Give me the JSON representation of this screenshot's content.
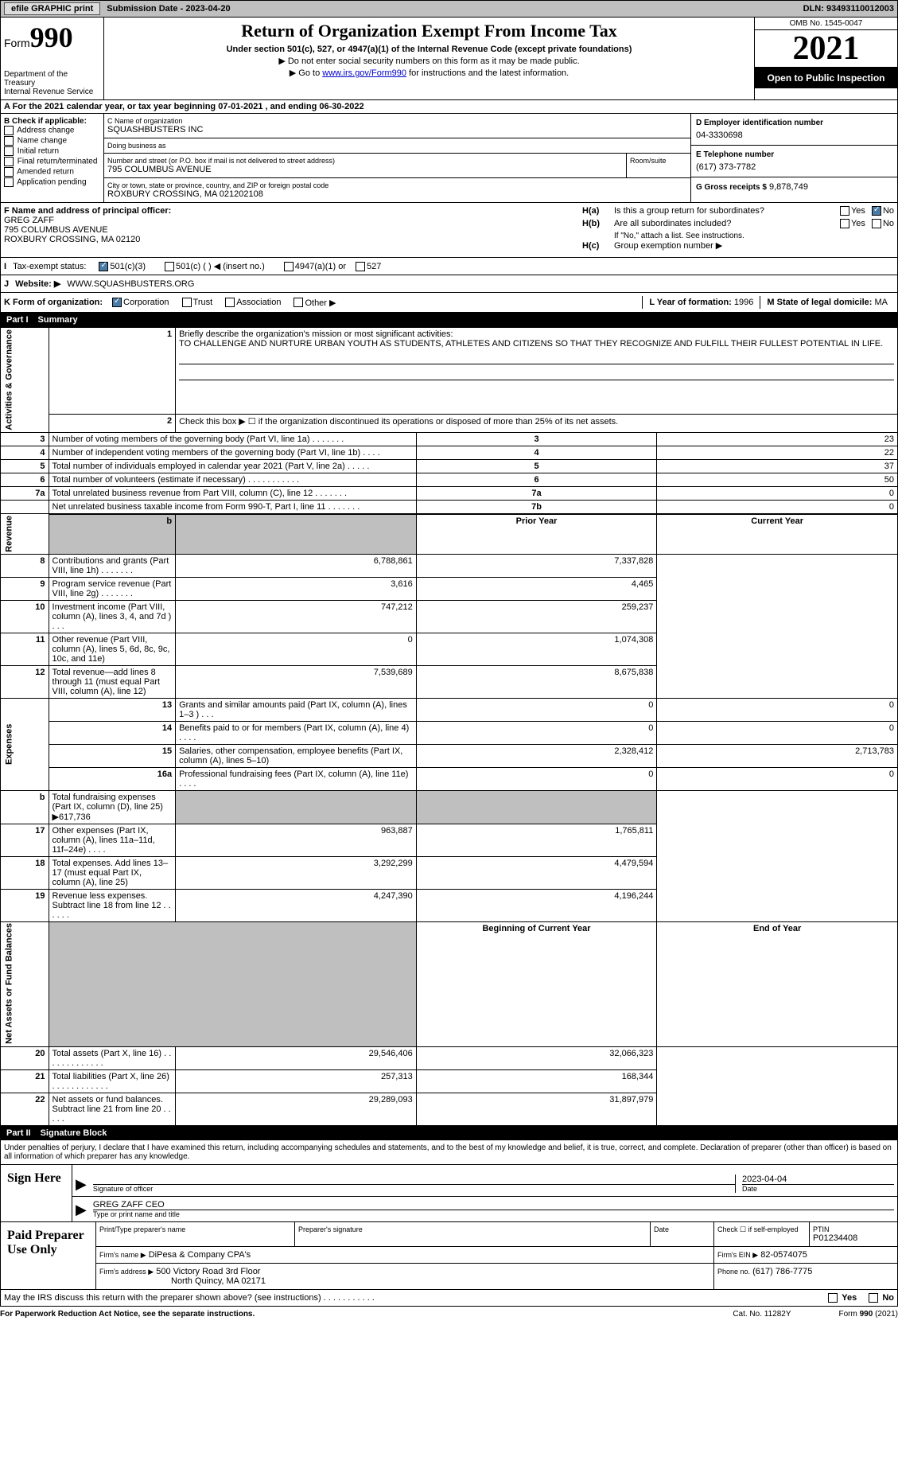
{
  "header": {
    "efile_btn": "efile GRAPHIC print",
    "submission": "Submission Date - 2023-04-20",
    "dln": "DLN: 93493110012003"
  },
  "form_box": {
    "form_word": "Form",
    "form_num": "990",
    "dept": "Department of the Treasury\nInternal Revenue Service",
    "title": "Return of Organization Exempt From Income Tax",
    "subtitle": "Under section 501(c), 527, or 4947(a)(1) of the Internal Revenue Code (except private foundations)",
    "line1": "▶ Do not enter social security numbers on this form as it may be made public.",
    "line2_pre": "▶ Go to ",
    "line2_link": "www.irs.gov/Form990",
    "line2_post": " for instructions and the latest information.",
    "omb": "OMB No. 1545-0047",
    "year": "2021",
    "inspect": "Open to Public Inspection"
  },
  "row_a": "A For the 2021 calendar year, or tax year beginning 07-01-2021   , and ending 06-30-2022",
  "col_b": {
    "header": "B Check if applicable:",
    "items": [
      "Address change",
      "Name change",
      "Initial return",
      "Final return/terminated",
      "Amended return",
      "Application pending"
    ]
  },
  "col_c": {
    "name_label": "C Name of organization",
    "name": "SQUASHBUSTERS INC",
    "dba_label": "Doing business as",
    "dba": "",
    "addr_label": "Number and street (or P.O. box if mail is not delivered to street address)",
    "addr": "795 COLUMBUS AVENUE",
    "room_label": "Room/suite",
    "city_label": "City or town, state or province, country, and ZIP or foreign postal code",
    "city": "ROXBURY CROSSING, MA  021202108"
  },
  "col_d": {
    "ein_label": "D Employer identification number",
    "ein": "04-3330698",
    "phone_label": "E Telephone number",
    "phone": "(617) 373-7782",
    "gross_label": "G Gross receipts $",
    "gross": "9,878,749"
  },
  "section_f": {
    "label": "F Name and address of principal officer:",
    "name": "GREG ZAFF",
    "addr1": "795 COLUMBUS AVENUE",
    "addr2": "ROXBURY CROSSING, MA  02120"
  },
  "section_h": {
    "ha_label": "H(a)",
    "ha_text": "Is this a group return for subordinates?",
    "ha_yes": "Yes",
    "ha_no": "No",
    "hb_label": "H(b)",
    "hb_text": "Are all subordinates included?",
    "hb_note": "If \"No,\" attach a list. See instructions.",
    "hc_label": "H(c)",
    "hc_text": "Group exemption number ▶"
  },
  "row_i": {
    "label": "I",
    "text": "Tax-exempt status:",
    "opt1": "501(c)(3)",
    "opt2": "501(c) (  ) ◀ (insert no.)",
    "opt3": "4947(a)(1) or",
    "opt4": "527"
  },
  "row_j": {
    "label": "J",
    "text": "Website: ▶",
    "url": "WWW.SQUASHBUSTERS.ORG"
  },
  "row_k": {
    "label": "K Form of organization:",
    "opts": [
      "Corporation",
      "Trust",
      "Association",
      "Other ▶"
    ],
    "l_label": "L Year of formation:",
    "l_val": "1996",
    "m_label": "M State of legal domicile:",
    "m_val": "MA"
  },
  "part1": {
    "header_num": "Part I",
    "header_title": "Summary",
    "line1_label": "Briefly describe the organization's mission or most significant activities:",
    "line1_text": "TO CHALLENGE AND NURTURE URBAN YOUTH AS STUDENTS, ATHLETES AND CITIZENS SO THAT THEY RECOGNIZE AND FULFILL THEIR FULLEST POTENTIAL IN LIFE.",
    "side_gov": "Activities & Governance",
    "side_rev": "Revenue",
    "side_exp": "Expenses",
    "side_net": "Net Assets or Fund Balances",
    "line2": "Check this box ▶ ☐ if the organization discontinued its operations or disposed of more than 25% of its net assets.",
    "rows_gov": [
      {
        "n": "3",
        "d": "Number of voting members of the governing body (Part VI, line 1a)  .   .   .   .   .   .   .",
        "b": "3",
        "v": "23"
      },
      {
        "n": "4",
        "d": "Number of independent voting members of the governing body (Part VI, line 1b)   .   .   .   .",
        "b": "4",
        "v": "22"
      },
      {
        "n": "5",
        "d": "Total number of individuals employed in calendar year 2021 (Part V, line 2a)  .   .   .   .   .",
        "b": "5",
        "v": "37"
      },
      {
        "n": "6",
        "d": "Total number of volunteers (estimate if necessary)   .   .   .   .   .   .   .   .   .   .   .",
        "b": "6",
        "v": "50"
      },
      {
        "n": "7a",
        "d": "Total unrelated business revenue from Part VIII, column (C), line 12   .   .   .   .   .   .   .",
        "b": "7a",
        "v": "0"
      },
      {
        "n": "",
        "d": "Net unrelated business taxable income from Form 990-T, Part I, line 11  .   .   .   .   .   .   .",
        "b": "7b",
        "v": "0"
      }
    ],
    "col_prior": "Prior Year",
    "col_current": "Current Year",
    "rows_rev": [
      {
        "n": "8",
        "d": "Contributions and grants (Part VIII, line 1h)   .   .   .   .   .   .   .",
        "p": "6,788,861",
        "c": "7,337,828"
      },
      {
        "n": "9",
        "d": "Program service revenue (Part VIII, line 2g)   .   .   .   .   .   .   .",
        "p": "3,616",
        "c": "4,465"
      },
      {
        "n": "10",
        "d": "Investment income (Part VIII, column (A), lines 3, 4, and 7d )   .   .   .",
        "p": "747,212",
        "c": "259,237"
      },
      {
        "n": "11",
        "d": "Other revenue (Part VIII, column (A), lines 5, 6d, 8c, 9c, 10c, and 11e)",
        "p": "0",
        "c": "1,074,308"
      },
      {
        "n": "12",
        "d": "Total revenue—add lines 8 through 11 (must equal Part VIII, column (A), line 12)",
        "p": "7,539,689",
        "c": "8,675,838"
      }
    ],
    "rows_exp": [
      {
        "n": "13",
        "d": "Grants and similar amounts paid (Part IX, column (A), lines 1–3 )  .   .   .",
        "p": "0",
        "c": "0"
      },
      {
        "n": "14",
        "d": "Benefits paid to or for members (Part IX, column (A), line 4)  .   .   .   .",
        "p": "0",
        "c": "0"
      },
      {
        "n": "15",
        "d": "Salaries, other compensation, employee benefits (Part IX, column (A), lines 5–10)",
        "p": "2,328,412",
        "c": "2,713,783"
      },
      {
        "n": "16a",
        "d": "Professional fundraising fees (Part IX, column (A), line 11e)   .   .   .   .",
        "p": "0",
        "c": "0"
      }
    ],
    "row_16b": {
      "n": "b",
      "d": "Total fundraising expenses (Part IX, column (D), line 25) ▶617,736"
    },
    "rows_exp2": [
      {
        "n": "17",
        "d": "Other expenses (Part IX, column (A), lines 11a–11d, 11f–24e)   .   .   .   .",
        "p": "963,887",
        "c": "1,765,811"
      },
      {
        "n": "18",
        "d": "Total expenses. Add lines 13–17 (must equal Part IX, column (A), line 25)",
        "p": "3,292,299",
        "c": "4,479,594"
      },
      {
        "n": "19",
        "d": "Revenue less expenses. Subtract line 18 from line 12  .   .   .   .   .   .",
        "p": "4,247,390",
        "c": "4,196,244"
      }
    ],
    "col_begin": "Beginning of Current Year",
    "col_end": "End of Year",
    "rows_net": [
      {
        "n": "20",
        "d": "Total assets (Part X, line 16)  .   .   .   .   .   .   .   .   .   .   .   .   .",
        "p": "29,546,406",
        "c": "32,066,323"
      },
      {
        "n": "21",
        "d": "Total liabilities (Part X, line 26)  .   .   .   .   .   .   .   .   .   .   .   .",
        "p": "257,313",
        "c": "168,344"
      },
      {
        "n": "22",
        "d": "Net assets or fund balances. Subtract line 21 from line 20  .   .   .   .   .",
        "p": "29,289,093",
        "c": "31,897,979"
      }
    ]
  },
  "part2": {
    "header_num": "Part II",
    "header_title": "Signature Block",
    "declare": "Under penalties of perjury, I declare that I have examined this return, including accompanying schedules and statements, and to the best of my knowledge and belief, it is true, correct, and complete. Declaration of preparer (other than officer) is based on all information of which preparer has any knowledge.",
    "sign_here": "Sign Here",
    "sig_label": "Signature of officer",
    "sig_date": "2023-04-04",
    "date_label": "Date",
    "name_title": "GREG ZAFF CEO",
    "name_label": "Type or print name and title",
    "paid_prep": "Paid Preparer Use Only",
    "prep_name_label": "Print/Type preparer's name",
    "prep_sig_label": "Preparer's signature",
    "prep_date_label": "Date",
    "self_emp": "Check ☐ if self-employed",
    "ptin_label": "PTIN",
    "ptin": "P01234408",
    "firm_name_label": "Firm's name    ▶",
    "firm_name": "DiPesa & Company CPA's",
    "firm_ein_label": "Firm's EIN ▶",
    "firm_ein": "82-0574075",
    "firm_addr_label": "Firm's address ▶",
    "firm_addr1": "500 Victory Road 3rd Floor",
    "firm_addr2": "North Quincy, MA  02171",
    "phone_label": "Phone no.",
    "phone": "(617) 786-7775",
    "discuss": "May the IRS discuss this return with the preparer shown above? (see instructions)   .   .   .   .   .   .   .   .   .   .   .",
    "yes": "Yes",
    "no": "No"
  },
  "footer": {
    "paperwork": "For Paperwork Reduction Act Notice, see the separate instructions.",
    "cat": "Cat. No. 11282Y",
    "form": "Form 990 (2021)"
  }
}
